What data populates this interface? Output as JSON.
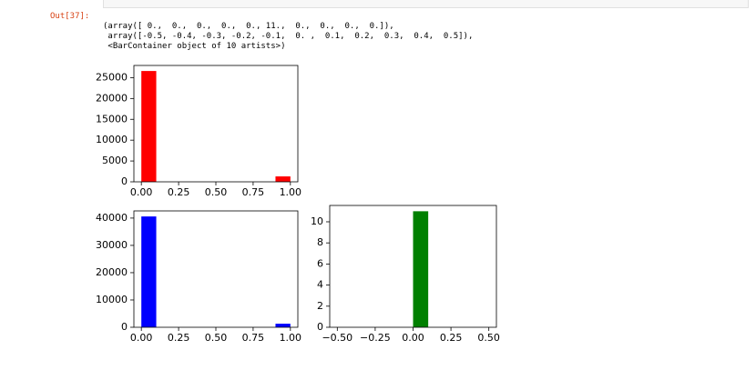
{
  "prompt": "Out[37]:",
  "output_lines": [
    "(array([ 0.,  0.,  0.,  0.,  0., 11.,  0.,  0.,  0.,  0.]),",
    " array([-0.5, -0.4, -0.3, -0.2, -0.1,  0. ,  0.1,  0.2,  0.3,  0.4,  0.5]),",
    " <BarContainer object of 10 artists>)"
  ],
  "chart_data": [
    {
      "type": "histogram",
      "color": "#ff0000",
      "bins": [
        0,
        0.1,
        0.2,
        0.3,
        0.4,
        0.5,
        0.6,
        0.7,
        0.8,
        0.9,
        1.0
      ],
      "values": [
        26600,
        0,
        0,
        0,
        0,
        0,
        0,
        0,
        0,
        1300
      ],
      "xlim": [
        -0.05,
        1.05
      ],
      "ylim": [
        0,
        27930
      ],
      "xticks": [
        {
          "value": 0,
          "label": "0.00"
        },
        {
          "value": 0.25,
          "label": "0.25"
        },
        {
          "value": 0.5,
          "label": "0.50"
        },
        {
          "value": 0.75,
          "label": "0.75"
        },
        {
          "value": 1,
          "label": "1.00"
        }
      ],
      "yticks": [
        0,
        5000,
        10000,
        15000,
        20000,
        25000
      ]
    },
    {
      "type": "histogram",
      "color": "#0000ff",
      "bins": [
        0,
        0.1,
        0.2,
        0.3,
        0.4,
        0.5,
        0.6,
        0.7,
        0.8,
        0.9,
        1.0
      ],
      "values": [
        40600,
        0,
        0,
        0,
        0,
        0,
        0,
        0,
        0,
        1300
      ],
      "xlim": [
        -0.05,
        1.05
      ],
      "ylim": [
        0,
        42630
      ],
      "xticks": [
        {
          "value": 0,
          "label": "0.00"
        },
        {
          "value": 0.25,
          "label": "0.25"
        },
        {
          "value": 0.5,
          "label": "0.50"
        },
        {
          "value": 0.75,
          "label": "0.75"
        },
        {
          "value": 1,
          "label": "1.00"
        }
      ],
      "yticks": [
        0,
        10000,
        20000,
        30000,
        40000
      ]
    },
    {
      "type": "histogram",
      "color": "#008000",
      "bins": [
        -0.5,
        -0.4,
        -0.3,
        -0.2,
        -0.1,
        0,
        0.1,
        0.2,
        0.3,
        0.4,
        0.5
      ],
      "values": [
        0,
        0,
        0,
        0,
        0,
        11,
        0,
        0,
        0,
        0
      ],
      "xlim": [
        -0.55,
        0.55
      ],
      "ylim": [
        0,
        11.55
      ],
      "xticks": [
        {
          "value": -0.5,
          "label": "−0.50"
        },
        {
          "value": -0.25,
          "label": "−0.25"
        },
        {
          "value": 0,
          "label": "0.00"
        },
        {
          "value": 0.25,
          "label": "0.25"
        },
        {
          "value": 0.5,
          "label": "0.50"
        }
      ],
      "yticks": [
        0,
        2,
        4,
        6,
        8,
        10
      ]
    }
  ]
}
